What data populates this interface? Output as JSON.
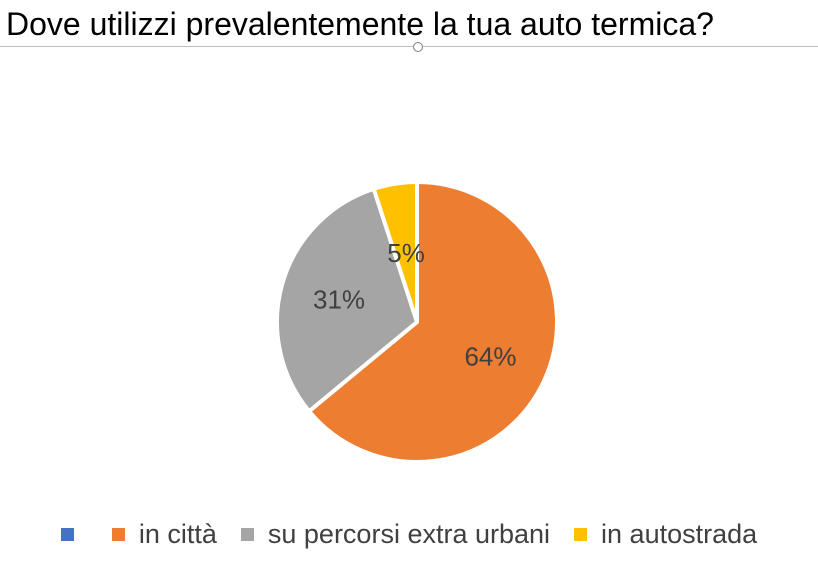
{
  "chart_data": {
    "type": "pie",
    "title": "Dove utilizzi prevalentemente la tua auto termica?",
    "categories": [
      "",
      "in città",
      "su percorsi extra urbani",
      "in autostrada"
    ],
    "values": [
      0,
      64,
      31,
      5
    ],
    "labels": [
      "",
      "64%",
      "31%",
      "5%"
    ],
    "colors": [
      "#4472c4",
      "#ed7d31",
      "#a5a5a5",
      "#ffc000"
    ],
    "legend_position": "bottom"
  },
  "legend": {
    "item0": "",
    "item1": "in città",
    "item2": "su percorsi extra urbani",
    "item3": "in autostrada"
  }
}
